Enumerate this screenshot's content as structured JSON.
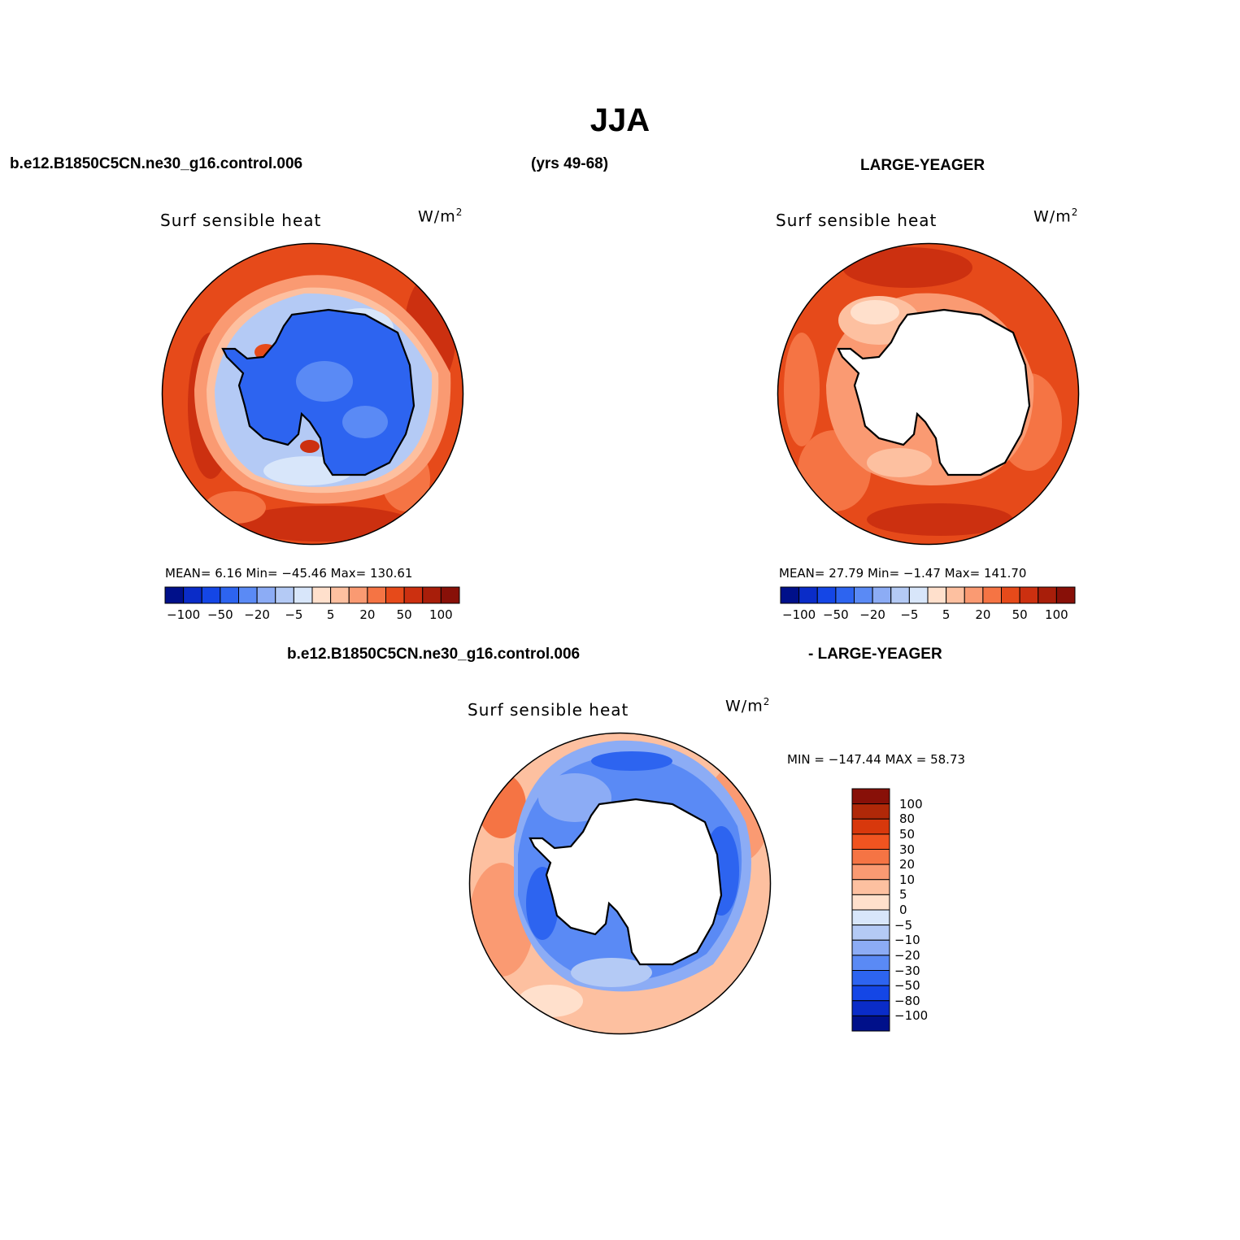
{
  "figure": {
    "title": "JJA",
    "subtitle_left": "b.e12.B1850C5CN.ne30_g16.control.006",
    "subtitle_center": "(yrs 49-68)",
    "subtitle_right": "LARGE-YEAGER",
    "diff_title_left": "b.e12.B1850C5CN.ne30_g16.control.006",
    "diff_title_right": "- LARGE-YEAGER"
  },
  "panels": {
    "model": {
      "label": "Surf  sensible  heat",
      "units": "W/m",
      "units_sup": "2",
      "stats": "MEAN=    6.16   Min=  −45.46   Max=  130.61"
    },
    "obs": {
      "label": "Surf  sensible  heat",
      "units": "W/m",
      "units_sup": "2",
      "stats": "MEAN=   27.79   Min=    −1.47   Max=  141.70"
    },
    "diff": {
      "label": "Surf  sensible  heat",
      "units": "W/m",
      "units_sup": "2",
      "stats": "MIN  =  −147.44  MAX  =    58.73"
    }
  },
  "colorbars": {
    "horizontal": {
      "colors": [
        "#00108a",
        "#0a2cc8",
        "#1446e6",
        "#2d64f0",
        "#5a8af5",
        "#8cacf5",
        "#b4caf5",
        "#d8e6fa",
        "#ffe0cc",
        "#fdc0a0",
        "#fa9a72",
        "#f57444",
        "#e64a1a",
        "#cc3010",
        "#a81e0a",
        "#881008"
      ],
      "tick_labels": [
        "−100",
        "−50",
        "−20",
        "−5",
        "5",
        "20",
        "50",
        "100"
      ]
    },
    "vertical": {
      "colors_top_to_bottom": [
        "#881008",
        "#b02808",
        "#d8380c",
        "#f05420",
        "#f57444",
        "#fa9a72",
        "#fdc0a0",
        "#ffe0cc",
        "#d8e6fa",
        "#b4caf5",
        "#8cacf5",
        "#5a8af5",
        "#2d64f0",
        "#1446e6",
        "#0a2cc8",
        "#00108a"
      ],
      "tick_labels": [
        "100",
        "80",
        "50",
        "30",
        "20",
        "10",
        "5",
        "0",
        "−5",
        "−10",
        "−20",
        "−30",
        "−50",
        "−80",
        "−100"
      ]
    }
  },
  "map_data": {
    "projection": "south-polar stereographic",
    "variable": "Surf sensible heat",
    "units": "W/m2",
    "season": "JJA",
    "model_field_summary": {
      "antarctica": "strongly negative (about -30 to -50)",
      "sea_ice_zone": "weakly negative (-5 to -20)",
      "open_ocean_ring": "positive (20 to 50)"
    },
    "obs_field_summary": {
      "antarctica": "no data",
      "near_coast": "5 to 20",
      "open_ocean_ring": "20 to 50"
    },
    "diff_field_summary": {
      "sea_ice_zone": "negative (-20 to -50)",
      "outer_ocean": "weakly positive (5 to 20)"
    }
  }
}
